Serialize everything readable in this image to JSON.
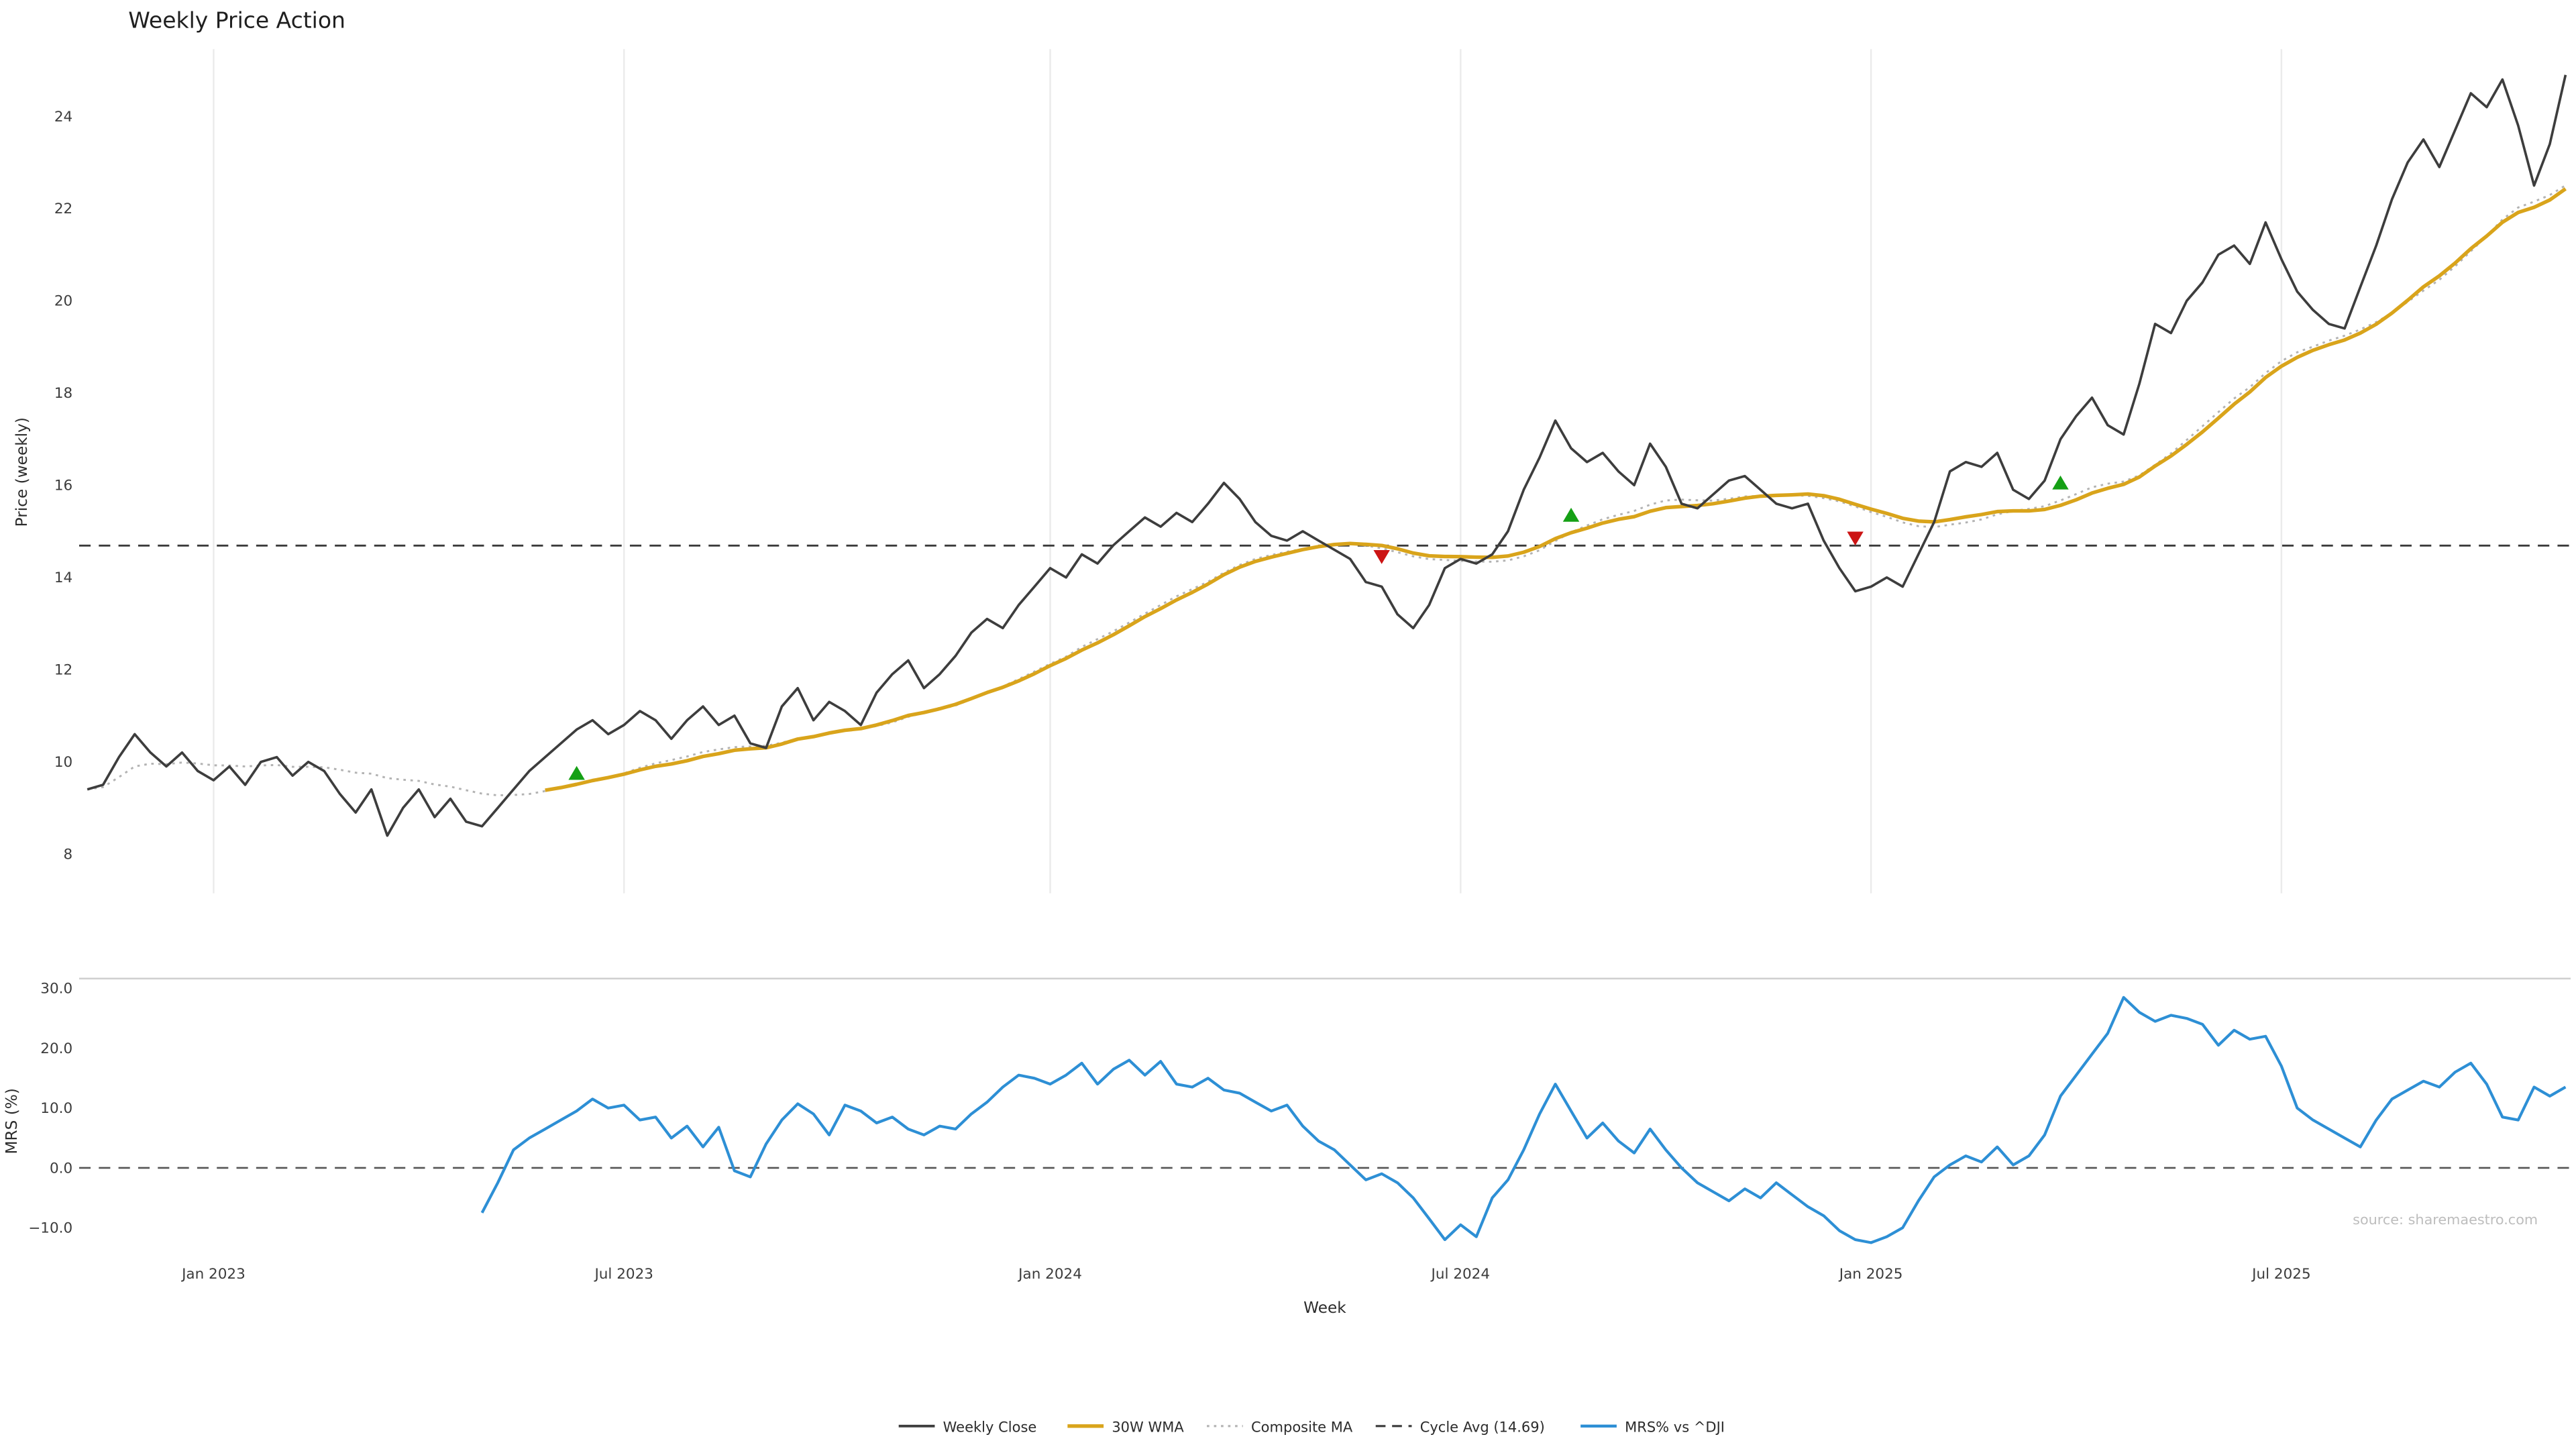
{
  "title": "Weekly Price Action",
  "source": "source: sharemaestro.com",
  "colors": {
    "close": "#3d3d3d",
    "wma": "#d9a41b",
    "composite": "#b3b3b3",
    "cycle": "#3a3a3a",
    "mrs": "#2d8fd5",
    "buy": "#15a015",
    "sell": "#cc1414",
    "grid": "#ebebeb",
    "spine": "#cfcfcf",
    "zero": "#555555"
  },
  "axes": {
    "price_label": "Price (weekly)",
    "mrs_label": "MRS (%)",
    "x_label": "Week",
    "price_ticks": [
      8,
      10,
      12,
      14,
      16,
      18,
      20,
      22,
      24
    ],
    "mrs_tick_labels": [
      "−10.0",
      "0.0",
      "10.0",
      "20.0",
      "30.0"
    ],
    "mrs_tick_values": [
      -10,
      0,
      10,
      20,
      30
    ],
    "x_ticks": [
      {
        "label": "Jan 2023",
        "week": 8
      },
      {
        "label": "Jul 2023",
        "week": 34
      },
      {
        "label": "Jan 2024",
        "week": 61
      },
      {
        "label": "Jul 2024",
        "week": 87
      },
      {
        "label": "Jan 2025",
        "week": 113
      },
      {
        "label": "Jul 2025",
        "week": 139
      }
    ]
  },
  "legend": {
    "items": [
      {
        "label": "Weekly Close",
        "series": "close",
        "style": "solid"
      },
      {
        "label": "30W WMA",
        "series": "wma",
        "style": "solid"
      },
      {
        "label": "Composite MA",
        "series": "composite",
        "style": "dotted"
      },
      {
        "label": "Cycle Avg (14.69)",
        "series": "cycle",
        "style": "dashed"
      },
      {
        "label": "MRS% vs ^DJI",
        "series": "mrs",
        "style": "solid"
      }
    ]
  },
  "chart_data": [
    {
      "type": "line",
      "panel": "price",
      "title": "Weekly Price Action",
      "xlabel": "Week",
      "ylabel": "Price (weekly)",
      "ylim": [
        7.1,
        25.5
      ],
      "x_unit": "week-index",
      "weeks_total": 158,
      "series": [
        {
          "name": "Weekly Close",
          "start_week": 0,
          "values": [
            9.4,
            9.5,
            10.1,
            10.6,
            10.2,
            9.9,
            10.2,
            9.8,
            9.6,
            9.9,
            9.5,
            10.0,
            10.1,
            9.7,
            10.0,
            9.8,
            9.3,
            8.9,
            9.4,
            8.4,
            9.0,
            9.4,
            8.8,
            9.2,
            8.7,
            8.6,
            9.0,
            9.4,
            9.8,
            10.1,
            10.4,
            10.7,
            10.9,
            10.6,
            10.8,
            11.1,
            10.9,
            10.5,
            10.9,
            11.2,
            10.8,
            11.0,
            10.4,
            10.3,
            11.2,
            11.6,
            10.9,
            11.3,
            11.1,
            10.8,
            11.5,
            11.9,
            12.2,
            11.6,
            11.9,
            12.3,
            12.8,
            13.1,
            12.9,
            13.4,
            13.8,
            14.2,
            14.0,
            14.5,
            14.3,
            14.7,
            15.0,
            15.3,
            15.1,
            15.4,
            15.2,
            15.6,
            16.05,
            15.7,
            15.2,
            14.9,
            14.8,
            15.0,
            14.8,
            14.6,
            14.4,
            13.9,
            13.8,
            13.2,
            12.9,
            13.4,
            14.2,
            14.4,
            14.3,
            14.5,
            15.0,
            15.9,
            16.6,
            17.4,
            16.8,
            16.5,
            16.7,
            16.3,
            16.0,
            16.9,
            16.4,
            15.6,
            15.5,
            15.8,
            16.1,
            16.2,
            15.9,
            15.6,
            15.5,
            15.6,
            14.8,
            14.2,
            13.7,
            13.8,
            14.0,
            13.8,
            14.5,
            15.2,
            16.3,
            16.5,
            16.4,
            16.7,
            15.9,
            15.7,
            16.1,
            17.0,
            17.5,
            17.9,
            17.3,
            17.1,
            18.2,
            19.5,
            19.3,
            20.0,
            20.4,
            21.0,
            21.2,
            20.8,
            21.7,
            20.9,
            20.2,
            19.8,
            19.5,
            19.4,
            20.3,
            21.2,
            22.2,
            23.0,
            23.5,
            22.9,
            23.7,
            24.5,
            24.2,
            24.8,
            23.8,
            22.5,
            23.4,
            24.9
          ]
        }
      ],
      "derived_series": [
        {
          "name": "30W WMA",
          "derive": "weighted-moving-average-of-close",
          "window": 30
        },
        {
          "name": "Composite MA",
          "derive": "mean-of-simple-moving-averages-of-close",
          "windows": [
            10,
            20,
            30
          ]
        }
      ],
      "cycle_avg": 14.69,
      "signals": [
        {
          "week": 31,
          "price": 9.75,
          "type": "buy"
        },
        {
          "week": 82,
          "price": 14.45,
          "type": "sell"
        },
        {
          "week": 94,
          "price": 15.35,
          "type": "buy"
        },
        {
          "week": 112,
          "price": 14.85,
          "type": "sell"
        },
        {
          "week": 125,
          "price": 16.05,
          "type": "buy"
        }
      ]
    },
    {
      "type": "line",
      "panel": "mrs",
      "xlabel": "Week",
      "ylabel": "MRS (%)",
      "ylim": [
        -16,
        32
      ],
      "zero_line": 0,
      "series": [
        {
          "name": "MRS% vs ^DJI",
          "start_week": 25,
          "values": [
            -7.5,
            -2.5,
            3,
            5,
            6.5,
            8,
            9.5,
            11.5,
            10,
            10.5,
            8,
            8.5,
            5,
            7,
            3.5,
            6.8,
            -0.5,
            -1.5,
            4,
            8,
            10.7,
            9,
            5.5,
            10.5,
            9.5,
            7.5,
            8.5,
            6.5,
            5.5,
            7,
            6.5,
            9,
            11,
            13.5,
            15.5,
            15,
            14,
            15.5,
            17.5,
            14,
            16.5,
            18,
            15.5,
            17.8,
            14,
            13.5,
            15,
            13,
            12.5,
            11,
            9.5,
            10.5,
            7,
            4.5,
            3,
            0.5,
            -2,
            -1,
            -2.5,
            -5,
            -8.5,
            -12,
            -9.5,
            -11.5,
            -5,
            -2,
            3,
            9,
            14,
            9.5,
            5,
            7.5,
            4.5,
            2.5,
            6.5,
            3,
            0,
            -2.5,
            -4,
            -5.5,
            -3.5,
            -5,
            -2.5,
            -4.5,
            -6.5,
            -8,
            -10.5,
            -12,
            -12.5,
            -11.5,
            -10,
            -5.5,
            -1.5,
            0.5,
            2,
            1,
            3.5,
            0.5,
            2,
            5.5,
            12,
            15.5,
            19,
            22.5,
            28.5,
            26,
            24.5,
            25.5,
            25,
            24,
            20.5,
            23,
            21.5,
            22,
            17,
            10,
            8,
            6.5,
            5,
            3.5,
            8,
            11.5,
            13,
            14.5,
            13.5,
            16,
            17.5,
            14,
            8.5,
            8,
            13.5,
            12,
            13.5
          ]
        }
      ]
    }
  ]
}
